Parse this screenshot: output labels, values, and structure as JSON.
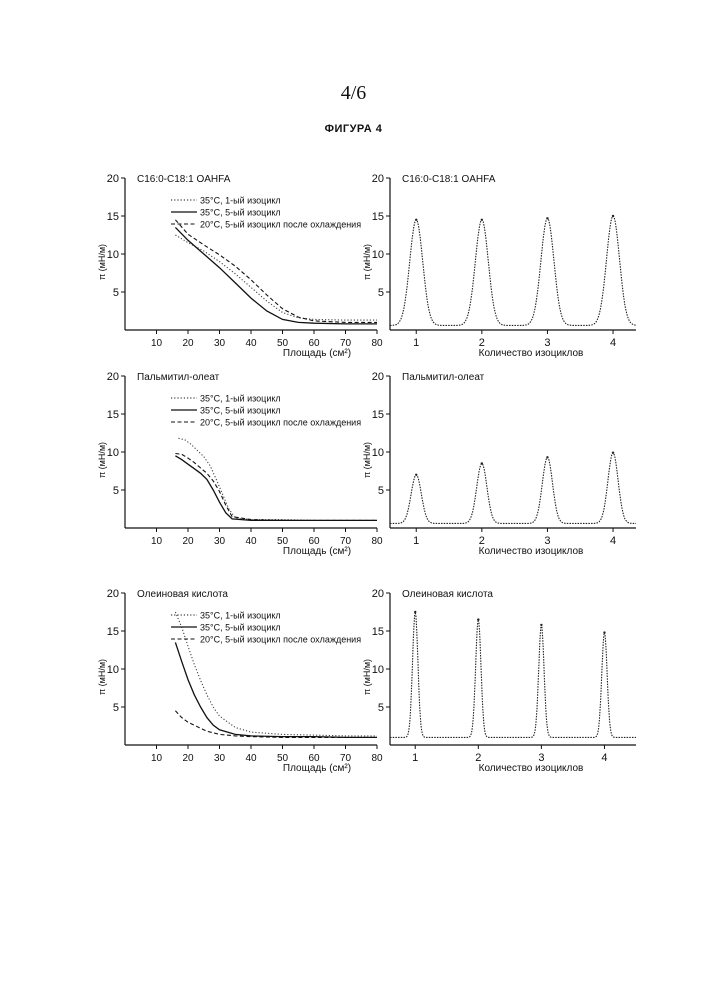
{
  "page_number": "4/6",
  "figure_title": "ФИГУРА 4",
  "chart_data": [
    {
      "type": "line",
      "panel": "isotherm",
      "title": "C16:0-C18:1 OAHFA",
      "xlabel": "Площадь (см²)",
      "ylabel": "π (мН/м)",
      "xlim": [
        0,
        80
      ],
      "ylim": [
        0,
        20
      ],
      "xticks": [
        10,
        20,
        30,
        40,
        50,
        60,
        70,
        80
      ],
      "yticks": [
        5,
        10,
        15,
        20
      ],
      "series": [
        {
          "name": "35°C, 1-ый изоцикл",
          "style": "dotted",
          "x": [
            16,
            20,
            25,
            30,
            35,
            40,
            45,
            50,
            55,
            60,
            70,
            80
          ],
          "y": [
            12.5,
            11.5,
            10.4,
            9.0,
            7.4,
            5.6,
            3.8,
            2.3,
            1.6,
            1.4,
            1.3,
            1.3
          ]
        },
        {
          "name": "35°C, 5-ый изоцикл",
          "style": "solid",
          "x": [
            16,
            20,
            25,
            30,
            35,
            40,
            45,
            50,
            55,
            60,
            70,
            80
          ],
          "y": [
            13.5,
            11.8,
            10.0,
            8.2,
            6.2,
            4.2,
            2.5,
            1.4,
            1.0,
            0.9,
            0.8,
            0.8
          ]
        },
        {
          "name": "20°C, 5-ый изоцикл после охлаждения",
          "style": "dashed",
          "x": [
            16,
            20,
            25,
            30,
            35,
            40,
            45,
            50,
            55,
            60,
            70,
            80
          ],
          "y": [
            14.5,
            12.6,
            11.2,
            9.9,
            8.4,
            6.6,
            4.6,
            2.8,
            1.7,
            1.2,
            1.0,
            1.0
          ]
        }
      ]
    },
    {
      "type": "line",
      "panel": "cycles",
      "title": "C16:0-C18:1 OAHFA",
      "xlabel": "Количество изоциклов",
      "ylabel": "π (мН/м)",
      "xlim": [
        0.6,
        4.35
      ],
      "ylim": [
        0,
        20
      ],
      "xticks": [
        1,
        2,
        3,
        4
      ],
      "yticks": [
        5,
        10,
        15,
        20
      ],
      "baseline": 0.6,
      "peaks": [
        14.5,
        14.5,
        14.7,
        15.0
      ],
      "peak_width": 0.14
    },
    {
      "type": "line",
      "panel": "isotherm",
      "title": "Пальмитил-олеат",
      "xlabel": "Площадь (см²)",
      "ylabel": "π (мН/м)",
      "xlim": [
        0,
        80
      ],
      "ylim": [
        0,
        20
      ],
      "xticks": [
        10,
        20,
        30,
        40,
        50,
        60,
        70,
        80
      ],
      "yticks": [
        5,
        10,
        15,
        20
      ],
      "series": [
        {
          "name": "35°C, 1-ый изоцикл",
          "style": "dotted",
          "x": [
            17,
            19,
            21,
            23,
            25,
            27,
            29,
            31,
            33,
            35,
            40,
            50,
            60,
            70,
            80
          ],
          "y": [
            11.8,
            11.6,
            11.0,
            10.2,
            9.4,
            8.2,
            6.4,
            4.4,
            2.5,
            1.3,
            1.1,
            1.1,
            1.0,
            1.0,
            1.0
          ]
        },
        {
          "name": "35°C, 5-ый изоцикл",
          "style": "solid",
          "x": [
            16,
            18,
            20,
            22,
            24,
            26,
            28,
            30,
            32,
            34,
            40,
            50,
            60,
            70,
            80
          ],
          "y": [
            9.5,
            9.0,
            8.4,
            7.8,
            7.2,
            6.4,
            5.0,
            3.4,
            2.0,
            1.2,
            1.0,
            1.0,
            1.0,
            1.0,
            1.0
          ]
        },
        {
          "name": "20°C, 5-ый изоцикл после охлаждения",
          "style": "dashed",
          "x": [
            16,
            18,
            20,
            22,
            24,
            26,
            28,
            30,
            32,
            34,
            40,
            50,
            60,
            70,
            80
          ],
          "y": [
            9.8,
            9.7,
            9.2,
            8.6,
            7.9,
            7.2,
            6.2,
            4.8,
            3.0,
            1.5,
            1.1,
            1.0,
            1.0,
            1.0,
            1.0
          ]
        }
      ]
    },
    {
      "type": "line",
      "panel": "cycles",
      "title": "Пальмитил-олеат",
      "xlabel": "Количество изоциклов",
      "ylabel": "π (мН/м)",
      "xlim": [
        0.6,
        4.35
      ],
      "ylim": [
        0,
        20
      ],
      "xticks": [
        1,
        2,
        3,
        4
      ],
      "yticks": [
        5,
        10,
        15,
        20
      ],
      "baseline": 0.6,
      "peaks": [
        7.0,
        8.5,
        9.3,
        9.9
      ],
      "peak_width": 0.11
    },
    {
      "type": "line",
      "panel": "isotherm",
      "title": "Олеиновая кислота",
      "xlabel": "Площадь (см²)",
      "ylabel": "π (мН/м)",
      "xlim": [
        0,
        80
      ],
      "ylim": [
        0,
        20
      ],
      "xticks": [
        10,
        20,
        30,
        40,
        50,
        60,
        70,
        80
      ],
      "yticks": [
        5,
        10,
        15,
        20
      ],
      "series": [
        {
          "name": "35°C, 1-ый изоцикл",
          "style": "dotted",
          "x": [
            16,
            18,
            20,
            22,
            24,
            26,
            28,
            30,
            35,
            40,
            50,
            60,
            70,
            80
          ],
          "y": [
            17.5,
            15.5,
            13.0,
            10.6,
            8.5,
            6.6,
            5.0,
            3.8,
            2.3,
            1.7,
            1.4,
            1.3,
            1.2,
            1.2
          ]
        },
        {
          "name": "35°C, 5-ый изоцикл",
          "style": "solid",
          "x": [
            16,
            18,
            20,
            22,
            24,
            26,
            28,
            30,
            35,
            40,
            50,
            60,
            70,
            80
          ],
          "y": [
            13.5,
            11.0,
            8.6,
            6.6,
            5.0,
            3.6,
            2.6,
            2.0,
            1.4,
            1.2,
            1.1,
            1.1,
            1.0,
            1.0
          ]
        },
        {
          "name": "20°C, 5-ый изоцикл после охлаждения",
          "style": "dashed",
          "x": [
            16,
            18,
            20,
            22,
            24,
            26,
            28,
            30,
            35,
            40,
            50,
            60,
            70,
            80
          ],
          "y": [
            4.5,
            3.6,
            3.0,
            2.6,
            2.2,
            1.8,
            1.6,
            1.4,
            1.2,
            1.1,
            1.0,
            1.0,
            1.0,
            1.0
          ]
        }
      ]
    },
    {
      "type": "line",
      "panel": "cycles",
      "title": "Олеиновая кислота",
      "xlabel": "Количество изоциклов",
      "ylabel": "π (мН/м)",
      "xlim": [
        0.6,
        4.5
      ],
      "ylim": [
        0,
        20
      ],
      "xticks": [
        1,
        2,
        3,
        4
      ],
      "yticks": [
        5,
        10,
        15,
        20
      ],
      "baseline": 1.0,
      "peaks": [
        17.5,
        16.5,
        15.8,
        14.8
      ],
      "peak_width": 0.06
    }
  ]
}
